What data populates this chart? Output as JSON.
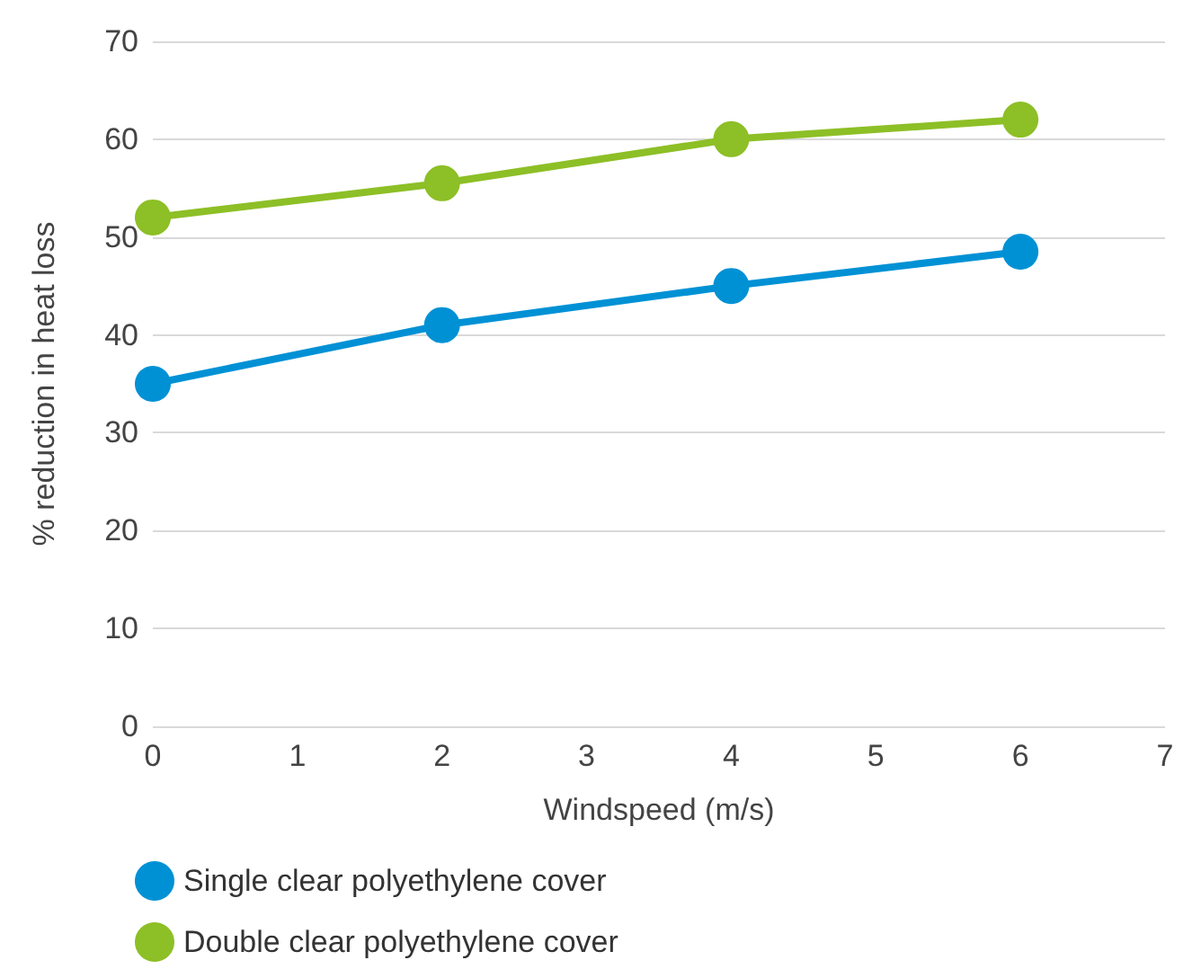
{
  "chart_data": {
    "type": "line",
    "xlabel": "Windspeed (m/s)",
    "ylabel": "% reduction in heat loss",
    "x": [
      0,
      2,
      4,
      6
    ],
    "xlim": [
      0,
      7
    ],
    "xticks": [
      0,
      1,
      2,
      3,
      4,
      5,
      6,
      7
    ],
    "ylim": [
      0,
      70
    ],
    "yticks": [
      0,
      10,
      20,
      30,
      40,
      50,
      60,
      70
    ],
    "grid": "y",
    "legend": "bottom left",
    "marker": "circle",
    "line_style": "solid",
    "series": [
      {
        "name": "Single clear polyethylene cover",
        "color": "#0091d5",
        "values": [
          35,
          41,
          45,
          48.5
        ]
      },
      {
        "name": "Double clear polyethylene cover",
        "color": "#8dbf26",
        "values": [
          52,
          55.5,
          60,
          62
        ]
      }
    ]
  }
}
